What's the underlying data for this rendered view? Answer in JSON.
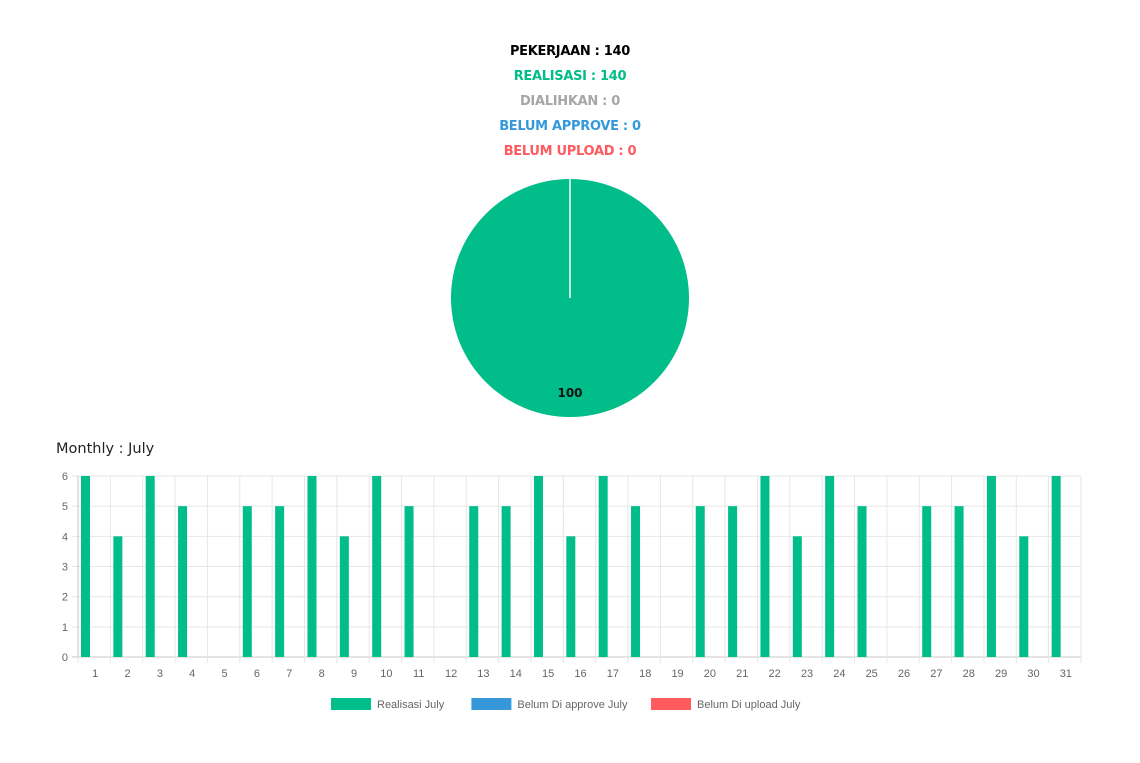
{
  "summary": {
    "pekerjaan": "PEKERJAAN : 140",
    "realisasi": "REALISASI : 140",
    "dialihkan": "DIALIHKAN : 0",
    "belum_approve": "BELUM APPROVE : 0",
    "belum_upload": "BELUM UPLOAD : 0"
  },
  "colors": {
    "pekerjaan": "#000000",
    "realisasi": "#00bd8a",
    "dialihkan": "#a6a6a6",
    "belum_approve": "#3498db",
    "belum_upload": "#ff5a5f",
    "grid": "#e6e6e6",
    "axis": "#666666"
  },
  "monthly": {
    "title": "Monthly : July"
  },
  "chart_data": [
    {
      "type": "pie",
      "slices": [
        {
          "label": "Realisasi",
          "value": 100,
          "color": "#00bd8a"
        }
      ],
      "data_label": "100"
    },
    {
      "type": "bar",
      "categories": [
        "1",
        "2",
        "3",
        "4",
        "5",
        "6",
        "7",
        "8",
        "9",
        "10",
        "11",
        "12",
        "13",
        "14",
        "15",
        "16",
        "17",
        "18",
        "19",
        "20",
        "21",
        "22",
        "23",
        "24",
        "25",
        "26",
        "27",
        "28",
        "29",
        "30",
        "31"
      ],
      "series": [
        {
          "name": "Realisasi July",
          "color": "#00bd8a",
          "values": [
            6,
            4,
            6,
            5,
            0,
            5,
            5,
            6,
            4,
            6,
            5,
            0,
            5,
            5,
            6,
            4,
            6,
            5,
            0,
            5,
            5,
            6,
            4,
            6,
            5,
            0,
            5,
            5,
            6,
            4,
            6
          ]
        },
        {
          "name": "Belum Di approve July",
          "color": "#3498db",
          "values": [
            0,
            0,
            0,
            0,
            0,
            0,
            0,
            0,
            0,
            0,
            0,
            0,
            0,
            0,
            0,
            0,
            0,
            0,
            0,
            0,
            0,
            0,
            0,
            0,
            0,
            0,
            0,
            0,
            0,
            0,
            0
          ]
        },
        {
          "name": "Belum Di upload July",
          "color": "#ff5a5f",
          "values": [
            0,
            0,
            0,
            0,
            0,
            0,
            0,
            0,
            0,
            0,
            0,
            0,
            0,
            0,
            0,
            0,
            0,
            0,
            0,
            0,
            0,
            0,
            0,
            0,
            0,
            0,
            0,
            0,
            0,
            0,
            0
          ]
        }
      ],
      "yticks": [
        "0",
        "1",
        "2",
        "3",
        "4",
        "5",
        "6"
      ],
      "ylim": [
        0,
        6
      ],
      "grid": true,
      "legend_position": "bottom"
    }
  ]
}
